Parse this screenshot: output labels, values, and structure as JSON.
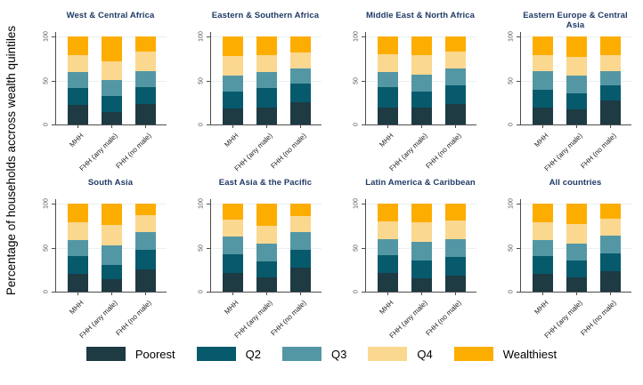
{
  "chart_data": {
    "type": "bar",
    "stacked": true,
    "ylabel": "Percentage of households accross wealth quintiles",
    "ylim": [
      0,
      100
    ],
    "yticks": [
      0,
      50,
      100
    ],
    "grid": "horizontal, light, at 50 and 100",
    "legend_position": "bottom",
    "categories": [
      "MHH",
      "FHH (any male)",
      "FHH (no male)"
    ],
    "quintiles": [
      "Poorest",
      "Q2",
      "Q3",
      "Q4",
      "Wealthiest"
    ],
    "colors": {
      "Poorest": "#1e3a43",
      "Q2": "#065a6c",
      "Q3": "#5497a4",
      "Q4": "#fbd890",
      "Wealthiest": "#fdad00",
      "title": "#1f3a66",
      "axis": "#4d4d4d",
      "gridline": "#e7f0f2"
    },
    "panels": [
      {
        "title": "West & Central Africa",
        "series": [
          {
            "name": "Poorest",
            "values": [
              22,
              14,
              23
            ]
          },
          {
            "name": "Q2",
            "values": [
              19,
              18,
              19
            ]
          },
          {
            "name": "Q3",
            "values": [
              19,
              19,
              19
            ]
          },
          {
            "name": "Q4",
            "values": [
              19,
              21,
              22
            ]
          },
          {
            "name": "Wealthiest",
            "values": [
              21,
              28,
              17
            ]
          }
        ]
      },
      {
        "title": "Eastern & Southern Africa",
        "series": [
          {
            "name": "Poorest",
            "values": [
              18,
              19,
              25
            ]
          },
          {
            "name": "Q2",
            "values": [
              19,
              22,
              21
            ]
          },
          {
            "name": "Q3",
            "values": [
              19,
              19,
              18
            ]
          },
          {
            "name": "Q4",
            "values": [
              22,
              19,
              18
            ]
          },
          {
            "name": "Wealthiest",
            "values": [
              22,
              21,
              18
            ]
          }
        ]
      },
      {
        "title": "Middle East & North Africa",
        "series": [
          {
            "name": "Poorest",
            "values": [
              19,
              19,
              23
            ]
          },
          {
            "name": "Q2",
            "values": [
              23,
              18,
              21
            ]
          },
          {
            "name": "Q3",
            "values": [
              18,
              20,
              20
            ]
          },
          {
            "name": "Q4",
            "values": [
              20,
              22,
              19
            ]
          },
          {
            "name": "Wealthiest",
            "values": [
              20,
              21,
              17
            ]
          }
        ]
      },
      {
        "title": "Eastern Europe & Central Asia",
        "series": [
          {
            "name": "Poorest",
            "values": [
              19,
              17,
              27
            ]
          },
          {
            "name": "Q2",
            "values": [
              20,
              18,
              17
            ]
          },
          {
            "name": "Q3",
            "values": [
              22,
              21,
              17
            ]
          },
          {
            "name": "Q4",
            "values": [
              18,
              21,
              18
            ]
          },
          {
            "name": "Wealthiest",
            "values": [
              21,
              23,
              21
            ]
          }
        ]
      },
      {
        "title": "South Asia",
        "series": [
          {
            "name": "Poorest",
            "values": [
              20,
              14,
              25
            ]
          },
          {
            "name": "Q2",
            "values": [
              20,
              16,
              22
            ]
          },
          {
            "name": "Q3",
            "values": [
              19,
              23,
              21
            ]
          },
          {
            "name": "Q4",
            "values": [
              20,
              23,
              19
            ]
          },
          {
            "name": "Wealthiest",
            "values": [
              21,
              24,
              13
            ]
          }
        ]
      },
      {
        "title": "East Asia & the Pacific",
        "series": [
          {
            "name": "Poorest",
            "values": [
              21,
              16,
              27
            ]
          },
          {
            "name": "Q2",
            "values": [
              21,
              18,
              21
            ]
          },
          {
            "name": "Q3",
            "values": [
              21,
              21,
              20
            ]
          },
          {
            "name": "Q4",
            "values": [
              19,
              20,
              18
            ]
          },
          {
            "name": "Wealthiest",
            "values": [
              18,
              25,
              14
            ]
          }
        ]
      },
      {
        "title": "Latin America & Caribbean",
        "series": [
          {
            "name": "Poorest",
            "values": [
              21,
              15,
              18
            ]
          },
          {
            "name": "Q2",
            "values": [
              20,
              20,
              21
            ]
          },
          {
            "name": "Q3",
            "values": [
              19,
              22,
              21
            ]
          },
          {
            "name": "Q4",
            "values": [
              20,
              22,
              21
            ]
          },
          {
            "name": "Wealthiest",
            "values": [
              20,
              21,
              19
            ]
          }
        ]
      },
      {
        "title": "All countries",
        "series": [
          {
            "name": "Poorest",
            "values": [
              20,
              16,
              23
            ]
          },
          {
            "name": "Q2",
            "values": [
              20,
              19,
              20
            ]
          },
          {
            "name": "Q3",
            "values": [
              19,
              20,
              21
            ]
          },
          {
            "name": "Q4",
            "values": [
              20,
              22,
              19
            ]
          },
          {
            "name": "Wealthiest",
            "values": [
              21,
              23,
              17
            ]
          }
        ]
      }
    ]
  }
}
